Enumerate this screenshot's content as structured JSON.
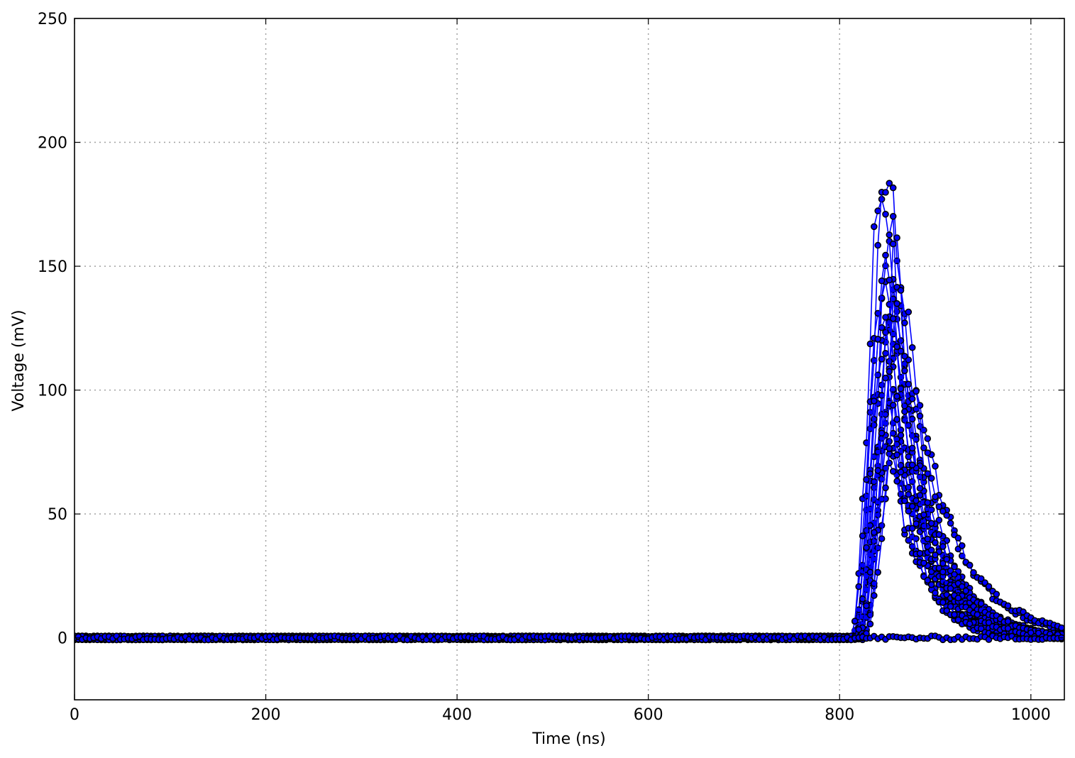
{
  "chart_data": {
    "type": "line",
    "title": "",
    "xlabel": "Time (ns)",
    "ylabel": "Voltage (mV)",
    "xlim": [
      0,
      1035
    ],
    "ylim": [
      -25,
      250
    ],
    "xticks": [
      0,
      200,
      400,
      600,
      800,
      1000
    ],
    "yticks": [
      0,
      50,
      100,
      150,
      200,
      250
    ],
    "grid": true,
    "sample_interval_ns": 4,
    "line_color": "#0000ff",
    "marker_color": "#000000",
    "marker_fill": "#0000ff",
    "series": [
      {
        "baseline": 0,
        "onset": 812,
        "peak_time": 846,
        "amplitude": 190,
        "rise": 12,
        "decay": 28
      },
      {
        "baseline": 0,
        "onset": 815,
        "peak_time": 852,
        "amplitude": 197,
        "rise": 14,
        "decay": 30
      },
      {
        "baseline": 0,
        "onset": 818,
        "peak_time": 856,
        "amplitude": 163,
        "rise": 14,
        "decay": 32
      },
      {
        "baseline": 0,
        "onset": 820,
        "peak_time": 862,
        "amplitude": 155,
        "rise": 15,
        "decay": 35
      },
      {
        "baseline": 0,
        "onset": 814,
        "peak_time": 848,
        "amplitude": 148,
        "rise": 13,
        "decay": 30
      },
      {
        "baseline": 0,
        "onset": 822,
        "peak_time": 858,
        "amplitude": 140,
        "rise": 14,
        "decay": 34
      },
      {
        "baseline": 0,
        "onset": 816,
        "peak_time": 850,
        "amplitude": 132,
        "rise": 13,
        "decay": 29
      },
      {
        "baseline": 0,
        "onset": 819,
        "peak_time": 855,
        "amplitude": 125,
        "rise": 14,
        "decay": 36
      },
      {
        "baseline": 0,
        "onset": 824,
        "peak_time": 860,
        "amplitude": 118,
        "rise": 15,
        "decay": 40
      },
      {
        "baseline": 0,
        "onset": 813,
        "peak_time": 847,
        "amplitude": 110,
        "rise": 13,
        "decay": 31
      },
      {
        "baseline": 0,
        "onset": 817,
        "peak_time": 853,
        "amplitude": 102,
        "rise": 14,
        "decay": 33
      },
      {
        "baseline": 0,
        "onset": 821,
        "peak_time": 857,
        "amplitude": 95,
        "rise": 14,
        "decay": 37
      },
      {
        "baseline": 0,
        "onset": 815,
        "peak_time": 849,
        "amplitude": 88,
        "rise": 13,
        "decay": 30
      },
      {
        "baseline": 0,
        "onset": 823,
        "peak_time": 861,
        "amplitude": 80,
        "rise": 15,
        "decay": 42
      },
      {
        "baseline": 0,
        "onset": 818,
        "peak_time": 854,
        "amplitude": 72,
        "rise": 14,
        "decay": 34
      },
      {
        "baseline": 0,
        "onset": 826,
        "peak_time": 864,
        "amplitude": 145,
        "rise": 15,
        "decay": 45
      },
      {
        "baseline": 0,
        "onset": 811,
        "peak_time": 845,
        "amplitude": 135,
        "rise": 13,
        "decay": 27
      },
      {
        "baseline": 0,
        "onset": 820,
        "peak_time": 859,
        "amplitude": 128,
        "rise": 14,
        "decay": 38
      },
      {
        "baseline": 0,
        "onset": 825,
        "peak_time": 870,
        "amplitude": 112,
        "rise": 16,
        "decay": 50
      },
      {
        "baseline": 0,
        "onset": 817,
        "peak_time": 851,
        "amplitude": 150,
        "rise": 13,
        "decay": 32
      },
      {
        "baseline": 0,
        "onset": 0,
        "peak_time": 0,
        "amplitude": 0,
        "rise": 1,
        "decay": 1
      }
    ]
  }
}
